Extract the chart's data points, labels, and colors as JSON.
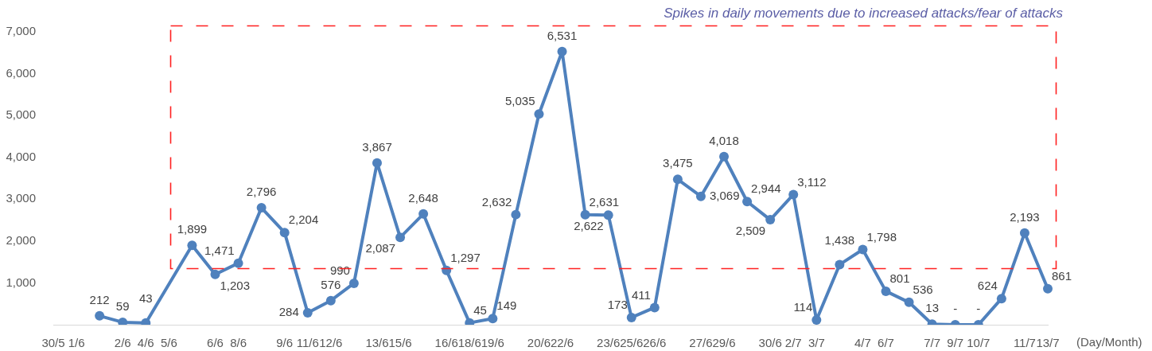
{
  "chart_data": {
    "type": "line",
    "xlabel": "(Day/Month)",
    "annotations": [
      "Spikes in daily movements due to increased attacks/fear of attacks"
    ],
    "categories": [
      "30/5",
      "1/6",
      null,
      "2/6",
      "4/6",
      "5/6",
      null,
      "6/6",
      "8/6",
      null,
      "9/6",
      "11/6",
      "12/6",
      null,
      "13/6",
      "15/6",
      null,
      "16/6",
      "18/6",
      "19/6",
      null,
      "20/6",
      "22/6",
      null,
      "23/6",
      "25/6",
      "26/6",
      null,
      "27/6",
      "29/6",
      null,
      "30/6",
      "2/7",
      "3/7",
      null,
      "4/7",
      "6/7",
      null,
      "7/7",
      "9/7",
      "10/7",
      null,
      "11/7",
      "13/7"
    ],
    "values": [
      null,
      null,
      212,
      59,
      43,
      null,
      1899,
      1203,
      1471,
      2796,
      2204,
      284,
      576,
      990,
      3867,
      2087,
      2648,
      1297,
      45,
      149,
      2632,
      5035,
      6531,
      2631,
      2622,
      173,
      411,
      3475,
      3069,
      4018,
      2944,
      2509,
      3112,
      114,
      1438,
      1798,
      801,
      536,
      13,
      0,
      0,
      624,
      2193,
      861
    ],
    "value_labels": [
      null,
      null,
      "212",
      "59",
      "43",
      null,
      "1,899",
      "1,203",
      "1,471",
      "2,796",
      "2,204",
      "284",
      "576",
      "990",
      "3,867",
      "2,087",
      "2,648",
      "1,297",
      "45",
      "149",
      "2,632",
      "5,035",
      "6,531",
      "2,631",
      "2,622",
      "173",
      "411",
      "3,475",
      "3,069",
      "4,018",
      "2,944",
      "2,509",
      "3,112",
      "114",
      "1,438",
      "1,798",
      "801",
      "536",
      "13",
      "-",
      "-",
      "624",
      "2,193",
      "861"
    ],
    "color": "#4f81bd",
    "marker": "circle",
    "ylim": [
      0,
      7000
    ],
    "yticks": [
      {
        "value": 1000,
        "label": "1,000"
      },
      {
        "value": 2000,
        "label": "2,000"
      },
      {
        "value": 3000,
        "label": "3,000"
      },
      {
        "value": 4000,
        "label": "4,000"
      },
      {
        "value": 5000,
        "label": "5,000"
      },
      {
        "value": 6000,
        "label": "6,000"
      },
      {
        "value": 7000,
        "label": "7,000"
      }
    ]
  }
}
